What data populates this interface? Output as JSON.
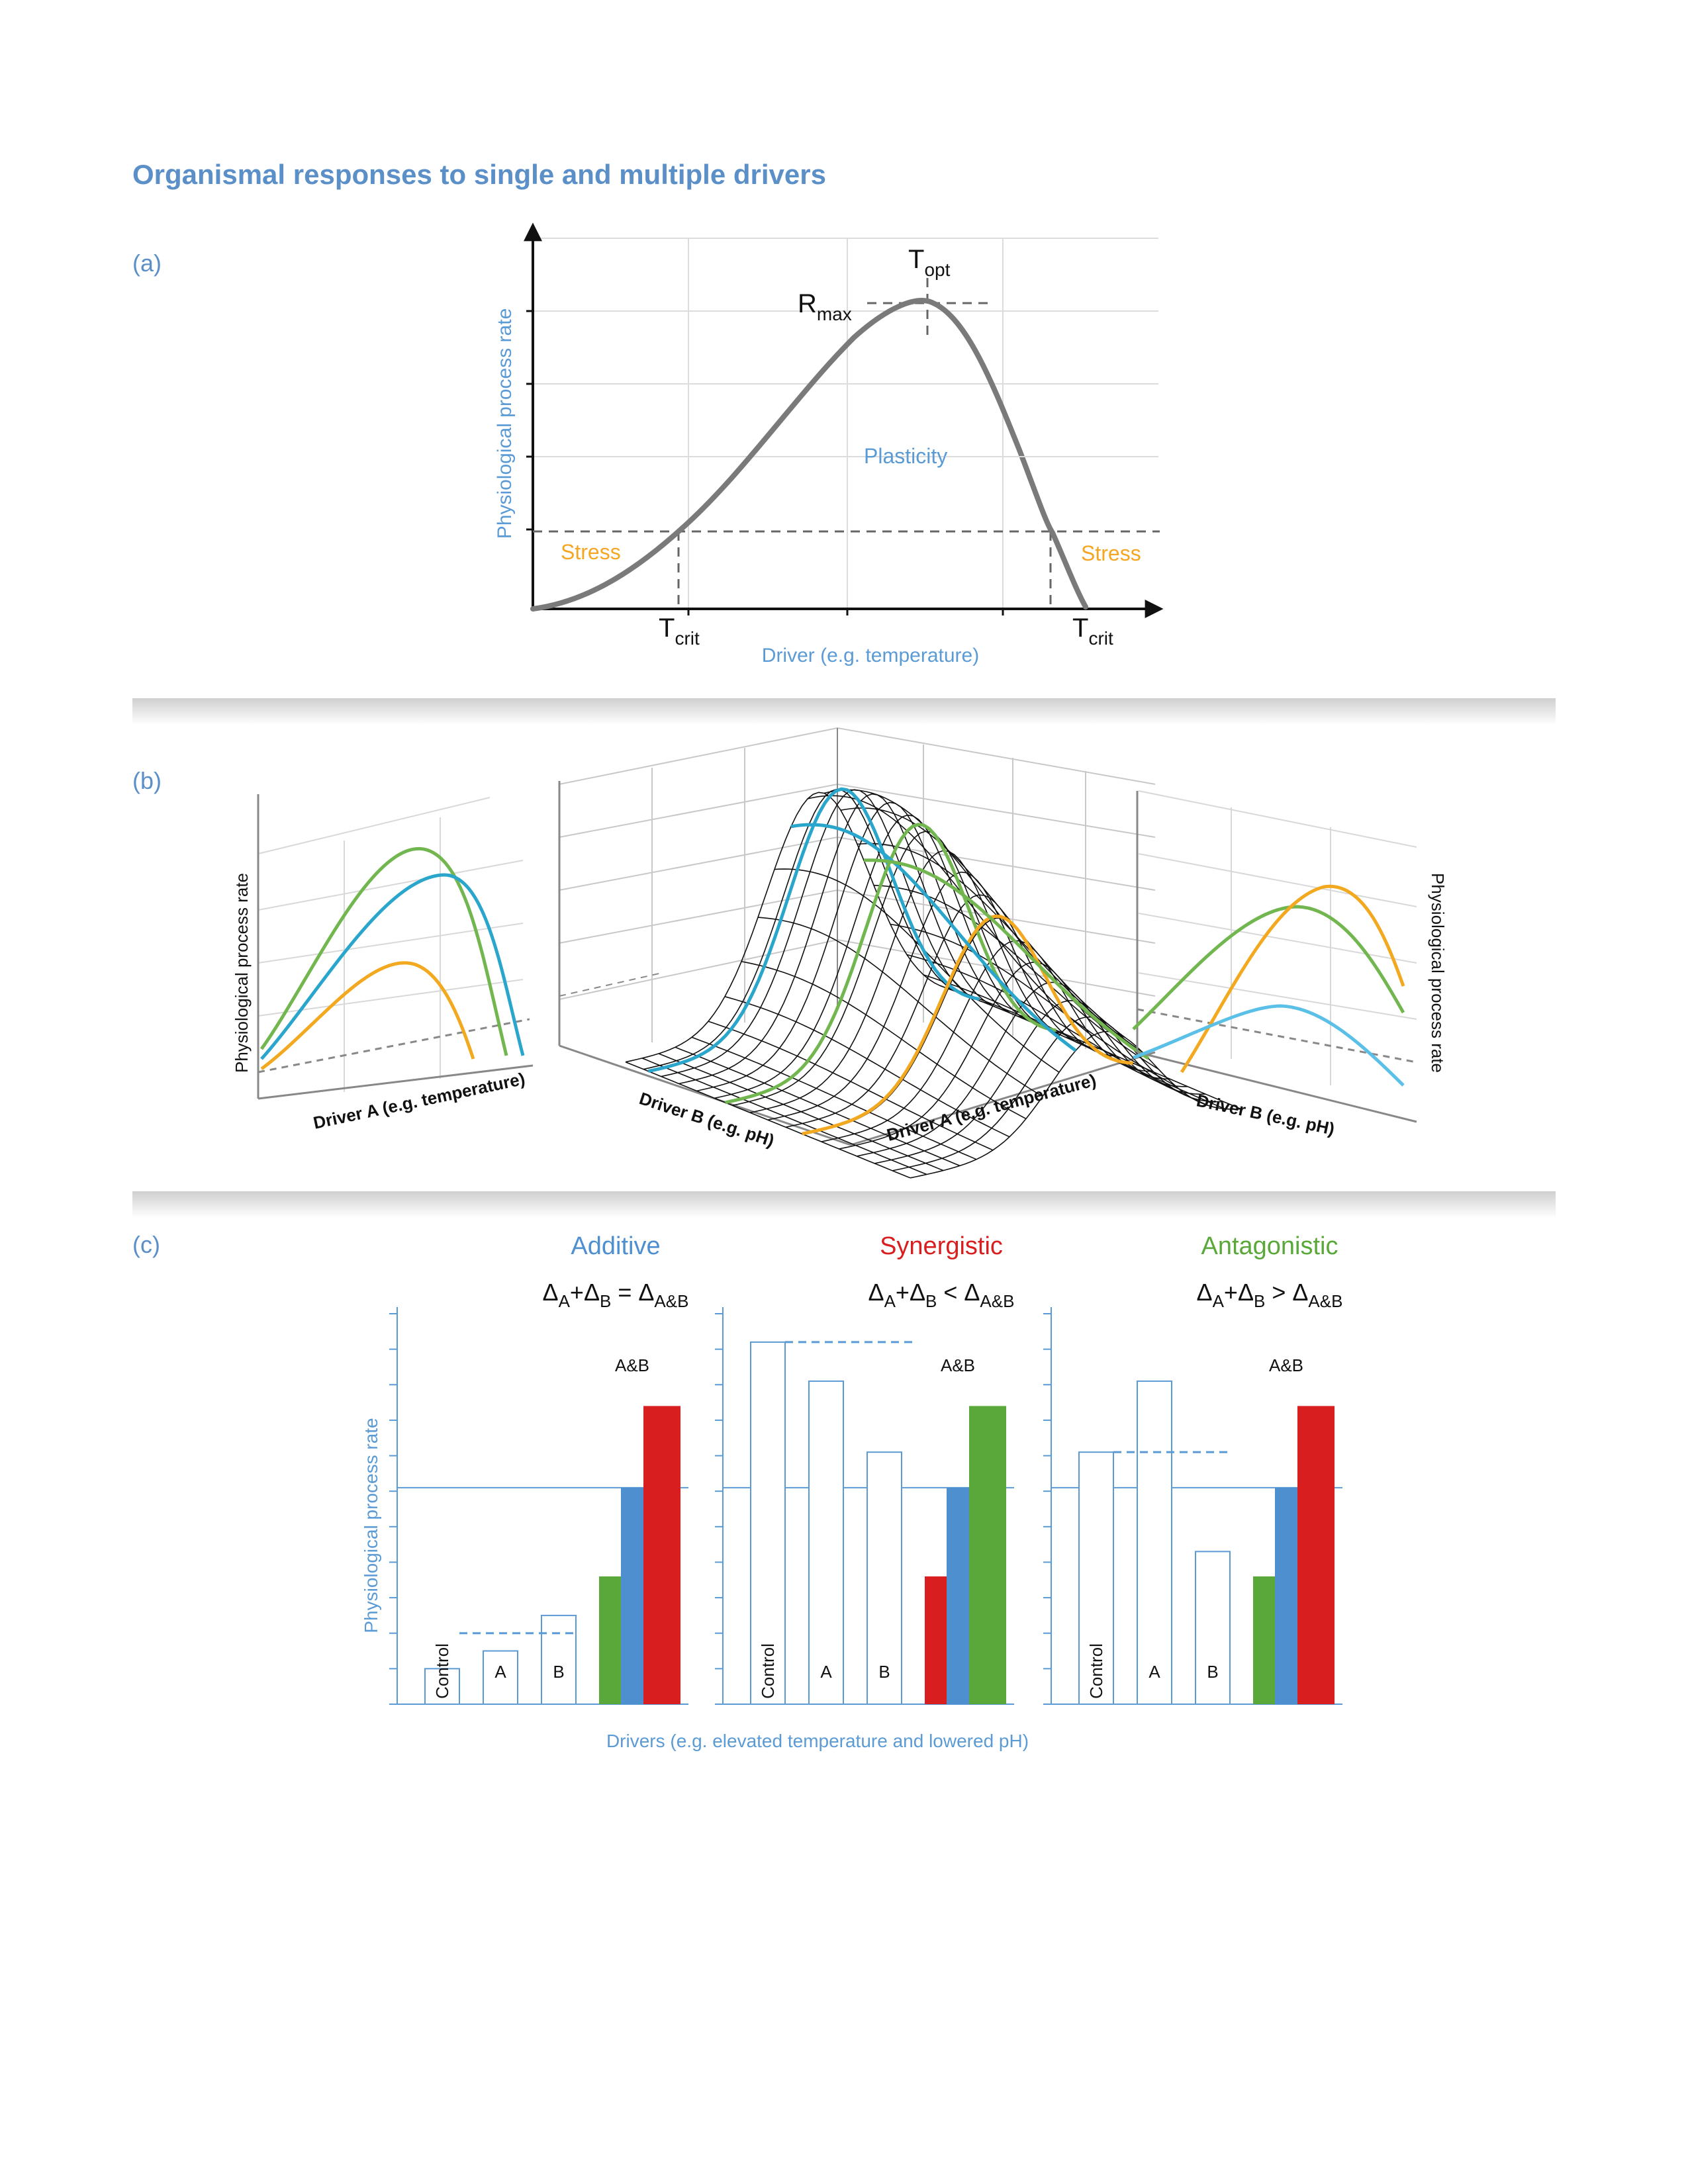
{
  "title": "Organismal responses to single and multiple drivers",
  "colors": {
    "title_blue": "#5b8fc7",
    "axis_blue": "#5b9bd5",
    "stress_orange": "#f5a623",
    "bar_blue": "#4e8fcf",
    "bar_green": "#5aa83a",
    "bar_red": "#d81e1e",
    "curve_green": "#72b64f",
    "curve_blue": "#2aa6cc",
    "curve_orange": "#f2a91f",
    "curve_gray": "#7a7a7a"
  },
  "panel_a": {
    "label": "(a)",
    "ylabel": "Physiological process rate",
    "xlabel": "Driver (e.g. temperature)",
    "t_main": "T",
    "opt_sub": "opt",
    "r_main": "R",
    "max_sub": "max",
    "crit_sub": "crit",
    "plasticity": "Plasticity",
    "stress": "Stress"
  },
  "panel_b": {
    "label": "(b)",
    "left_ylabel": "Physiological process rate",
    "left_xlabel": "Driver A (e.g. temperature)",
    "center_xlabel_b": "Driver B (e.g. pH)",
    "center_xlabel_a": "Driver A (e.g. temperature)",
    "right_xlabel": "Driver B (e.g. pH)",
    "right_ylabel": "Physiological process rate"
  },
  "panel_c": {
    "label": "(c)",
    "ylabel": "Physiological process rate",
    "xlabel": "Drivers (e.g. elevated temperature and lowered pH)",
    "delta": "Δ",
    "sub_a": "A",
    "sub_b": "B",
    "sub_ab": "A&B",
    "plus": "+",
    "charts": [
      {
        "title": "Additive",
        "relation": "=",
        "bar_labels": [
          "Control",
          "A",
          "B"
        ],
        "ab_label": "A&B",
        "values": {
          "control": 1.0,
          "a": 1.5,
          "b": 2.5,
          "green": 3.6,
          "blue": 6.1,
          "red": 8.4
        },
        "baseline": 6.1,
        "dashed_value": 2.0
      },
      {
        "title": "Synergistic",
        "relation": "<",
        "bar_labels": [
          "Control",
          "A",
          "B"
        ],
        "ab_label": "A&B",
        "values": {
          "control": 10.2,
          "a": 9.1,
          "b": 7.1,
          "red": 3.6,
          "blue": 6.1,
          "green": 8.4
        },
        "baseline": 6.1,
        "dashed_value": 10.2
      },
      {
        "title": "Antagonistic",
        "relation": ">",
        "bar_labels": [
          "Control",
          "A",
          "B"
        ],
        "ab_label": "A&B",
        "values": {
          "control": 7.1,
          "a": 9.1,
          "b": 4.3,
          "green": 3.6,
          "blue": 6.1,
          "red": 8.4
        },
        "baseline": 6.1,
        "dashed_value": 7.1
      }
    ]
  }
}
